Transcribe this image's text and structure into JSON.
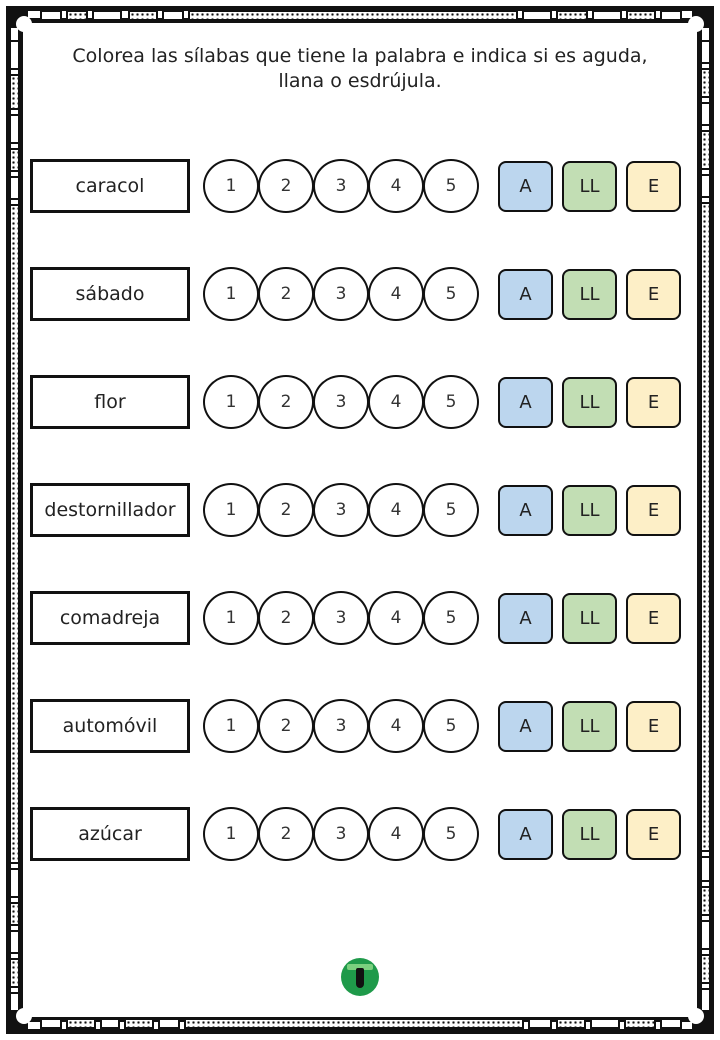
{
  "instruction": "Colorea las sílabas que tiene la palabra e indica si es aguda, llana o esdrújula.",
  "syllable_numbers": [
    "1",
    "2",
    "3",
    "4",
    "5"
  ],
  "options": {
    "aguda": "A",
    "llana": "LL",
    "esdrujula": "E"
  },
  "option_colors": {
    "aguda": "#bcd6ee",
    "llana": "#c2deb4",
    "esdrujula": "#fdefc7"
  },
  "words": [
    "caracol",
    "sábado",
    "flor",
    "destornillador",
    "comadreja",
    "automóvil",
    "azúcar"
  ]
}
